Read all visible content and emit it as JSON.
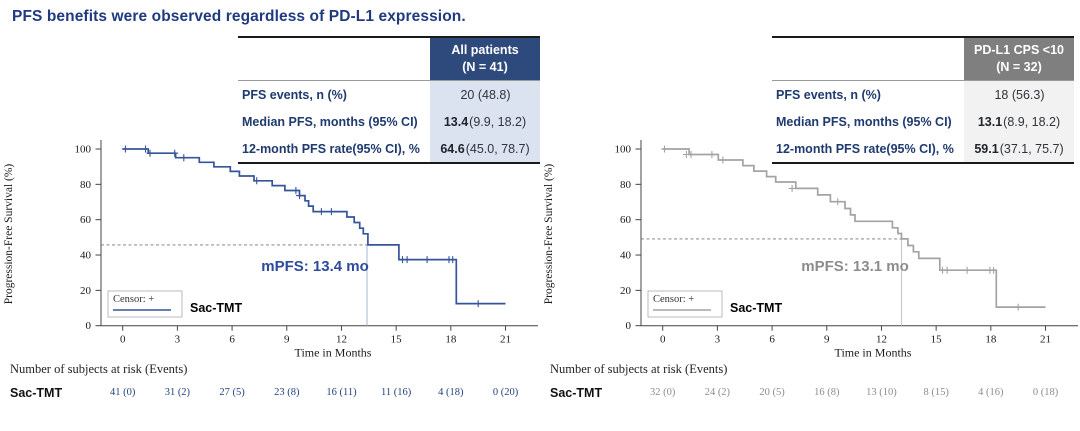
{
  "title": "PFS benefits were observed regardless of PD-L1 expression.",
  "colors": {
    "title_text": "#203a80",
    "table_label_text": "#1f3a6e",
    "left_header_bg": "#2e4a7c",
    "left_value_bg": "#dbe3f1",
    "right_header_bg": "#7f7f7f",
    "right_value_bg": "#f2f2f2",
    "left_curve": "#35549b",
    "right_curve": "#a3a3a3"
  },
  "tables": [
    {
      "header_line1": "All patients",
      "header_line2": "(N = 41)",
      "rows": [
        {
          "label": "PFS events, n (%)",
          "bold": "",
          "rest": "20 (48.8)"
        },
        {
          "label": "Median PFS, months (95% CI)",
          "bold": "13.4",
          "rest": " (9.9, 18.2)"
        },
        {
          "label": "12-month PFS rate(95% CI), %",
          "bold": "64.6",
          "rest": "(45.0, 78.7)"
        }
      ]
    },
    {
      "header_line1": "PD-L1 CPS <10",
      "header_line2": "(N = 32)",
      "rows": [
        {
          "label": "PFS events, n (%)",
          "bold": "",
          "rest": "18 (56.3)"
        },
        {
          "label": "Median PFS, months (95% CI)",
          "bold": "13.1",
          "rest": " (8.9, 18.2)"
        },
        {
          "label": "12-month PFS rate(95% CI), %",
          "bold": "59.1",
          "rest": " (37.1, 75.7)"
        }
      ]
    }
  ],
  "chart_data": [
    {
      "type": "line",
      "subtype": "kaplan-meier-step",
      "title": "All patients (N = 41)",
      "xlabel": "Time in Months",
      "ylabel": "Progression-Free Survival (%)",
      "xlim": [
        0,
        21
      ],
      "ylim": [
        0,
        100
      ],
      "xticks": [
        0,
        3,
        6,
        9,
        12,
        15,
        18,
        21
      ],
      "yticks": [
        0,
        20,
        40,
        60,
        80,
        100
      ],
      "grid": false,
      "legend": {
        "censor": "Censor: +",
        "series": "Sac-TMT"
      },
      "series": [
        {
          "name": "Sac-TMT",
          "color": "#35549b",
          "points": [
            [
              0,
              100
            ],
            [
              1.4,
              97.6
            ],
            [
              2.9,
              95.1
            ],
            [
              4.2,
              92.5
            ],
            [
              5.0,
              89.9
            ],
            [
              5.9,
              87.3
            ],
            [
              6.4,
              84.7
            ],
            [
              7.2,
              82.0
            ],
            [
              8.2,
              79.3
            ],
            [
              8.9,
              76.5
            ],
            [
              9.7,
              73.6
            ],
            [
              10.0,
              70.7
            ],
            [
              10.2,
              67.7
            ],
            [
              10.45,
              64.6
            ],
            [
              12.3,
              61.5
            ],
            [
              12.7,
              58.4
            ],
            [
              13.0,
              55.2
            ],
            [
              13.2,
              52.0
            ],
            [
              13.45,
              45.7
            ],
            [
              15.15,
              37.4
            ],
            [
              18.3,
              12.5
            ],
            [
              21,
              12.5
            ]
          ]
        }
      ],
      "censors": [
        [
          0.15,
          100
        ],
        [
          1.25,
          100
        ],
        [
          1.5,
          97.6
        ],
        [
          2.85,
          97.6
        ],
        [
          3.35,
          95.1
        ],
        [
          7.35,
          82.0
        ],
        [
          9.5,
          76.5
        ],
        [
          9.7,
          73.6
        ],
        [
          10.9,
          64.6
        ],
        [
          11.45,
          64.6
        ],
        [
          15.35,
          37.4
        ],
        [
          15.6,
          37.4
        ],
        [
          16.7,
          37.4
        ],
        [
          17.9,
          37.4
        ],
        [
          18.1,
          37.4
        ],
        [
          19.5,
          12.5
        ]
      ],
      "median": {
        "t": 13.4,
        "level": 45.7,
        "label": "mPFS: 13.4 mo"
      },
      "annotation_color": "#2d4a9d",
      "vline_color": "#a9bcd8",
      "at_risk": {
        "title": "Number of subjects at risk (Events)",
        "row_label": "Sac-TMT",
        "value_color": "#24437c",
        "values": [
          "41 (0)",
          "31 (2)",
          "27 (5)",
          "23 (8)",
          "16 (11)",
          "11 (16)",
          "4 (18)",
          "0 (20)"
        ]
      }
    },
    {
      "type": "line",
      "subtype": "kaplan-meier-step",
      "title": "PD-L1 CPS <10 (N = 32)",
      "xlabel": "Time in Months",
      "ylabel": "Progression-Free Survival (%)",
      "xlim": [
        0,
        21
      ],
      "ylim": [
        0,
        100
      ],
      "xticks": [
        0,
        3,
        6,
        9,
        12,
        15,
        18,
        21
      ],
      "yticks": [
        0,
        20,
        40,
        60,
        80,
        100
      ],
      "grid": false,
      "legend": {
        "censor": "Censor: +",
        "series": "Sac-TMT"
      },
      "series": [
        {
          "name": "Sac-TMT",
          "color": "#a3a3a3",
          "points": [
            [
              0,
              100
            ],
            [
              1.45,
              96.9
            ],
            [
              3.05,
              93.8
            ],
            [
              4.4,
              90.6
            ],
            [
              5.0,
              87.5
            ],
            [
              5.7,
              84.4
            ],
            [
              6.2,
              81.3
            ],
            [
              7.3,
              77.7
            ],
            [
              8.5,
              74.0
            ],
            [
              9.2,
              70.2
            ],
            [
              10.0,
              66.3
            ],
            [
              10.3,
              62.7
            ],
            [
              10.55,
              59.1
            ],
            [
              12.6,
              55.4
            ],
            [
              12.9,
              52.2
            ],
            [
              13.1,
              49.1
            ],
            [
              13.45,
              45.4
            ],
            [
              13.75,
              41.8
            ],
            [
              14.05,
              38.1
            ],
            [
              15.2,
              31.4
            ],
            [
              18.3,
              10.5
            ],
            [
              21,
              10.5
            ]
          ]
        }
      ],
      "censors": [
        [
          0.1,
          100
        ],
        [
          1.3,
          96.9
        ],
        [
          1.55,
          96.9
        ],
        [
          2.7,
          96.9
        ],
        [
          3.3,
          93.8
        ],
        [
          7.1,
          77.7
        ],
        [
          9.6,
          70.2
        ],
        [
          15.35,
          31.4
        ],
        [
          15.6,
          31.4
        ],
        [
          16.7,
          31.4
        ],
        [
          17.95,
          31.4
        ],
        [
          18.15,
          31.4
        ],
        [
          19.5,
          10.5
        ]
      ],
      "median": {
        "t": 13.1,
        "level": 49.1,
        "label": "mPFS: 13.1 mo"
      },
      "annotation_color": "#8c8c8c",
      "vline_color": "#c8c8c8",
      "at_risk": {
        "title": "Number of subjects at risk (Events)",
        "row_label": "Sac-TMT",
        "value_color": "#8c8c8c",
        "values": [
          "32 (0)",
          "24 (2)",
          "20 (5)",
          "16 (8)",
          "13 (10)",
          "8 (15)",
          "4 (16)",
          "0 (18)"
        ]
      }
    }
  ]
}
